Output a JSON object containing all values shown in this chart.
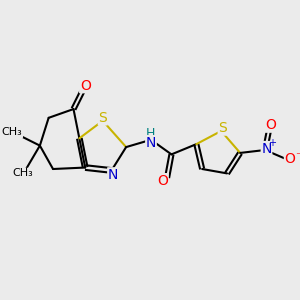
{
  "background_color": "#ebebeb",
  "bond_color": "#000000",
  "atom_colors": {
    "S": "#c8b400",
    "N": "#0000cc",
    "O": "#ff0000",
    "H": "#008080",
    "C": "#000000"
  },
  "font_size": 9,
  "lw": 1.5,
  "fig_size": [
    3.0,
    3.0
  ],
  "dpi": 100
}
